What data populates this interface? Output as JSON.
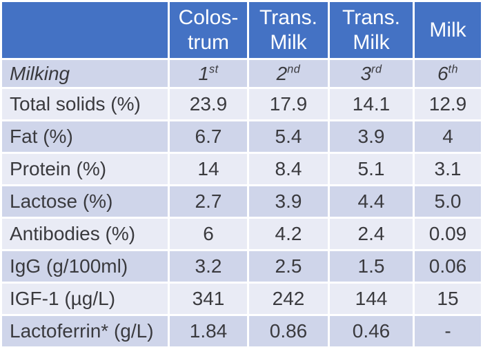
{
  "colors": {
    "header_bg": "#4472c4",
    "header_text": "#ffffff",
    "band_dark": "#cfd5ea",
    "band_light": "#e9ebf5",
    "body_text": "#3a3a3e",
    "grid": "#ffffff"
  },
  "chart_data": {
    "type": "table",
    "title": "",
    "columns": [
      "",
      "Colos-trum",
      "Trans. Milk",
      "Trans. Milk",
      "Milk"
    ],
    "milking_row": {
      "label": "Milking",
      "cells": [
        {
          "num": "1",
          "ord": "st"
        },
        {
          "num": "2",
          "ord": "nd"
        },
        {
          "num": "3",
          "ord": "rd"
        },
        {
          "num": "6",
          "ord": "th"
        }
      ]
    },
    "rows": [
      {
        "label": "Total solids (%)",
        "values": [
          "23.9",
          "17.9",
          "14.1",
          "12.9"
        ]
      },
      {
        "label": "Fat (%)",
        "values": [
          "6.7",
          "5.4",
          "3.9",
          "4"
        ]
      },
      {
        "label": "Protein (%)",
        "values": [
          "14",
          "8.4",
          "5.1",
          "3.1"
        ]
      },
      {
        "label": "Lactose (%)",
        "values": [
          "2.7",
          "3.9",
          "4.4",
          "5.0"
        ]
      },
      {
        "label": "Antibodies (%)",
        "values": [
          "6",
          "4.2",
          "2.4",
          "0.09"
        ]
      },
      {
        "label": "IgG (g/100ml)",
        "values": [
          "3.2",
          "2.5",
          "1.5",
          "0.06"
        ]
      },
      {
        "label": "IGF-1 (µg/L)",
        "values": [
          "341",
          "242",
          "144",
          "15"
        ]
      },
      {
        "label": "Lactoferrin* (g/L)",
        "values": [
          "1.84",
          "0.86",
          "0.46",
          "-"
        ]
      }
    ]
  }
}
